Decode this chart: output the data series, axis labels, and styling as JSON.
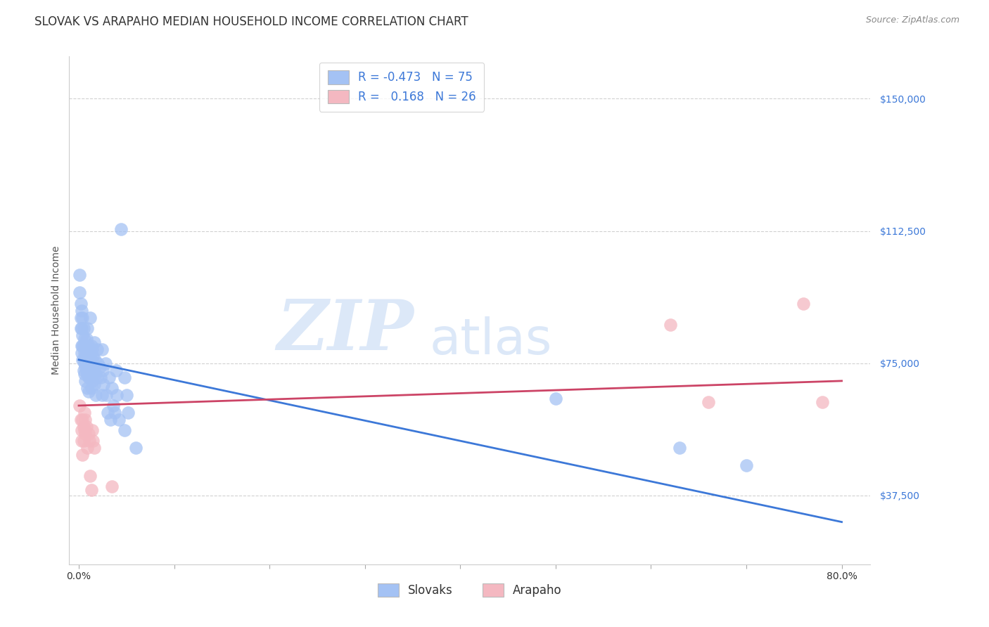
{
  "title": "SLOVAK VS ARAPAHO MEDIAN HOUSEHOLD INCOME CORRELATION CHART",
  "source": "Source: ZipAtlas.com",
  "ylabel": "Median Household Income",
  "ytick_values": [
    37500,
    75000,
    112500,
    150000
  ],
  "ymin": 18000,
  "ymax": 162000,
  "xmin": -0.01,
  "xmax": 0.83,
  "slovak_color": "#a4c2f4",
  "arapaho_color": "#f4b8c1",
  "slovak_line_color": "#3c78d8",
  "arapaho_line_color": "#cc4466",
  "slovak_scatter": [
    [
      0.001,
      100000
    ],
    [
      0.001,
      95000
    ],
    [
      0.002,
      92000
    ],
    [
      0.002,
      88000
    ],
    [
      0.002,
      85000
    ],
    [
      0.003,
      90000
    ],
    [
      0.003,
      85000
    ],
    [
      0.003,
      80000
    ],
    [
      0.003,
      78000
    ],
    [
      0.004,
      88000
    ],
    [
      0.004,
      83000
    ],
    [
      0.004,
      80000
    ],
    [
      0.004,
      76000
    ],
    [
      0.005,
      85000
    ],
    [
      0.005,
      80000
    ],
    [
      0.005,
      76000
    ],
    [
      0.005,
      73000
    ],
    [
      0.006,
      82000
    ],
    [
      0.006,
      78000
    ],
    [
      0.006,
      75000
    ],
    [
      0.006,
      72000
    ],
    [
      0.007,
      80000
    ],
    [
      0.007,
      77000
    ],
    [
      0.007,
      74000
    ],
    [
      0.007,
      70000
    ],
    [
      0.008,
      82000
    ],
    [
      0.008,
      76000
    ],
    [
      0.008,
      73000
    ],
    [
      0.009,
      85000
    ],
    [
      0.009,
      78000
    ],
    [
      0.009,
      72000
    ],
    [
      0.009,
      68000
    ],
    [
      0.01,
      80000
    ],
    [
      0.01,
      75000
    ],
    [
      0.01,
      71000
    ],
    [
      0.01,
      67000
    ],
    [
      0.011,
      79000
    ],
    [
      0.011,
      75000
    ],
    [
      0.011,
      71000
    ],
    [
      0.012,
      88000
    ],
    [
      0.012,
      77000
    ],
    [
      0.012,
      73000
    ],
    [
      0.013,
      80000
    ],
    [
      0.013,
      76000
    ],
    [
      0.013,
      68000
    ],
    [
      0.014,
      79000
    ],
    [
      0.014,
      74000
    ],
    [
      0.014,
      70000
    ],
    [
      0.015,
      77000
    ],
    [
      0.015,
      72000
    ],
    [
      0.016,
      81000
    ],
    [
      0.016,
      74000
    ],
    [
      0.016,
      69000
    ],
    [
      0.017,
      76000
    ],
    [
      0.018,
      72000
    ],
    [
      0.018,
      66000
    ],
    [
      0.019,
      79000
    ],
    [
      0.019,
      71000
    ],
    [
      0.02,
      75000
    ],
    [
      0.022,
      74000
    ],
    [
      0.023,
      71000
    ],
    [
      0.024,
      79000
    ],
    [
      0.024,
      66000
    ],
    [
      0.025,
      73000
    ],
    [
      0.026,
      69000
    ],
    [
      0.028,
      75000
    ],
    [
      0.029,
      66000
    ],
    [
      0.03,
      61000
    ],
    [
      0.032,
      71000
    ],
    [
      0.033,
      59000
    ],
    [
      0.035,
      68000
    ],
    [
      0.036,
      63000
    ],
    [
      0.038,
      61000
    ],
    [
      0.039,
      73000
    ],
    [
      0.04,
      66000
    ],
    [
      0.042,
      59000
    ],
    [
      0.044,
      113000
    ],
    [
      0.048,
      71000
    ],
    [
      0.048,
      56000
    ],
    [
      0.05,
      66000
    ],
    [
      0.052,
      61000
    ],
    [
      0.06,
      51000
    ],
    [
      0.5,
      65000
    ],
    [
      0.63,
      51000
    ],
    [
      0.7,
      46000
    ]
  ],
  "arapaho_scatter": [
    [
      0.001,
      63000
    ],
    [
      0.002,
      59000
    ],
    [
      0.003,
      56000
    ],
    [
      0.003,
      53000
    ],
    [
      0.004,
      59000
    ],
    [
      0.004,
      49000
    ],
    [
      0.005,
      57000
    ],
    [
      0.005,
      53000
    ],
    [
      0.006,
      61000
    ],
    [
      0.006,
      56000
    ],
    [
      0.007,
      59000
    ],
    [
      0.007,
      55000
    ],
    [
      0.008,
      57000
    ],
    [
      0.009,
      51000
    ],
    [
      0.01,
      55000
    ],
    [
      0.011,
      53000
    ],
    [
      0.012,
      43000
    ],
    [
      0.013,
      39000
    ],
    [
      0.014,
      56000
    ],
    [
      0.015,
      53000
    ],
    [
      0.016,
      51000
    ],
    [
      0.035,
      40000
    ],
    [
      0.62,
      86000
    ],
    [
      0.66,
      64000
    ],
    [
      0.76,
      92000
    ],
    [
      0.78,
      64000
    ]
  ],
  "slovak_trend_x": [
    0.0,
    0.8
  ],
  "slovak_trend_y": [
    76000,
    30000
  ],
  "arapaho_trend_x": [
    0.0,
    0.8
  ],
  "arapaho_trend_y": [
    63000,
    70000
  ],
  "background_color": "#ffffff",
  "grid_color": "#cccccc",
  "watermark_text": "ZIP",
  "watermark_text2": "atlas",
  "watermark_color": "#dce8f8",
  "title_fontsize": 12,
  "axis_label_fontsize": 10,
  "tick_fontsize": 10,
  "source_fontsize": 9
}
